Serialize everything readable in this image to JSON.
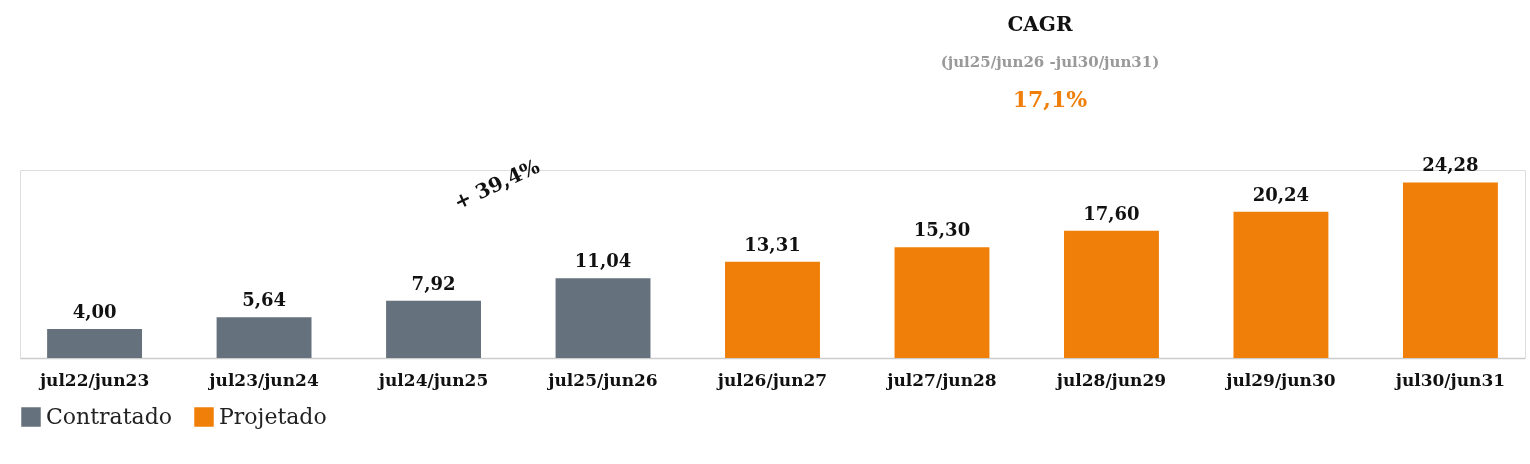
{
  "chart_data": {
    "type": "bar",
    "categories": [
      "jul22/jun23",
      "jul23/jun24",
      "jul24/jun25",
      "jul25/jun26",
      "jul26/jun27",
      "jul27/jun28",
      "jul28/jun29",
      "jul29/jun30",
      "jul30/jun31"
    ],
    "series": [
      {
        "name": "Contratado",
        "color": "#65717d",
        "values": [
          4.0,
          5.64,
          7.92,
          11.04,
          null,
          null,
          null,
          null,
          null
        ],
        "value_labels": [
          "4,00",
          "5,64",
          "7,92",
          "11,04",
          null,
          null,
          null,
          null,
          null
        ]
      },
      {
        "name": "Projetado",
        "color": "#f07f09",
        "values": [
          null,
          null,
          null,
          null,
          13.31,
          15.3,
          17.6,
          20.24,
          24.28
        ],
        "value_labels": [
          null,
          null,
          null,
          null,
          "13,31",
          "15,30",
          "17,60",
          "20,24",
          "24,28"
        ]
      }
    ],
    "annotations": [
      "CAGR",
      "(jul25/jun26 -jul30/jun31)",
      "17,1%",
      "+ 39,4%"
    ],
    "legend": "bottom",
    "grid": false
  }
}
